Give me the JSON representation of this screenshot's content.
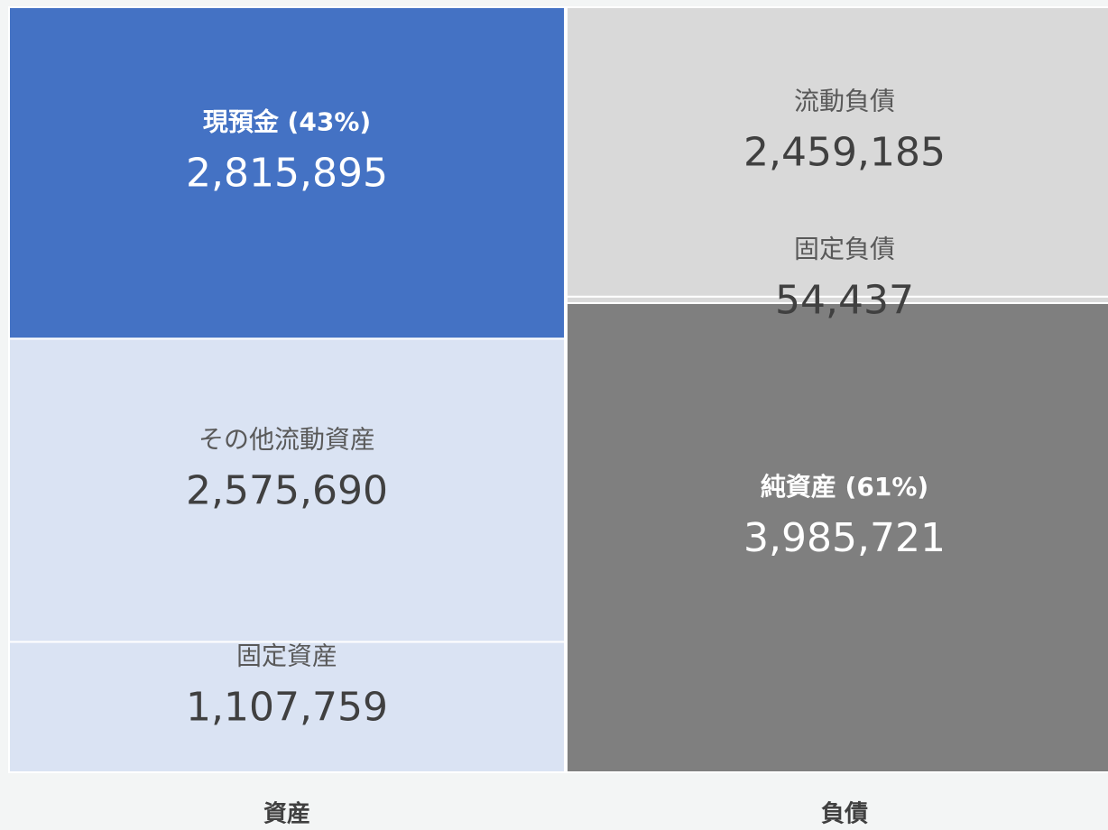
{
  "chart_data": {
    "type": "stacked-bar",
    "categories": [
      "資産",
      "負債"
    ],
    "series": [
      {
        "name": "現預金 (43%)",
        "color": "#4472c4",
        "values": [
          2815895,
          null
        ],
        "value_labels": [
          "2,815,895",
          null
        ]
      },
      {
        "name": "その他流動資産",
        "color": "#dae3f3",
        "values": [
          2575690,
          null
        ],
        "value_labels": [
          "2,575,690",
          null
        ]
      },
      {
        "name": "固定資産",
        "color": "#dae3f3",
        "values": [
          1107759,
          null
        ],
        "value_labels": [
          "1,107,759",
          null
        ]
      },
      {
        "name": "流動負債",
        "color": "#d9d9d9",
        "values": [
          null,
          2459185
        ],
        "value_labels": [
          null,
          "2,459,185"
        ]
      },
      {
        "name": "固定負債",
        "color": "#d9d9d9",
        "values": [
          null,
          54437
        ],
        "value_labels": [
          null,
          "54,437"
        ]
      },
      {
        "name": "純資産 (61%)",
        "color": "#7f7f7f",
        "values": [
          null,
          3985721
        ],
        "value_labels": [
          null,
          "3,985,721"
        ]
      }
    ]
  }
}
